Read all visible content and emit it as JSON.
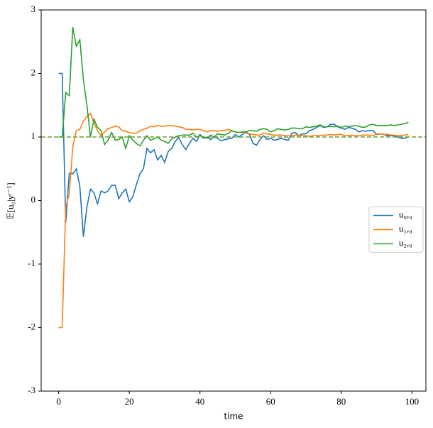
{
  "chart_data": {
    "type": "line",
    "xlabel": "time",
    "ylabel": "𝔼[u₀|yᵗ⁻¹]",
    "x": [
      0,
      1,
      2,
      3,
      4,
      5,
      6,
      7,
      8,
      9,
      10,
      11,
      12,
      13,
      14,
      15,
      16,
      17,
      18,
      19,
      20,
      21,
      22,
      23,
      24,
      25,
      26,
      27,
      28,
      29,
      30,
      31,
      32,
      33,
      34,
      35,
      36,
      37,
      38,
      39,
      40,
      41,
      42,
      43,
      44,
      45,
      46,
      47,
      48,
      49,
      50,
      51,
      52,
      53,
      54,
      55,
      56,
      57,
      58,
      59,
      60,
      61,
      62,
      63,
      64,
      65,
      66,
      67,
      68,
      69,
      70,
      71,
      72,
      73,
      74,
      75,
      76,
      77,
      78,
      79,
      80,
      81,
      82,
      83,
      84,
      85,
      86,
      87,
      88,
      89,
      90,
      91,
      92,
      93,
      94,
      95,
      96,
      97,
      98,
      99
    ],
    "series": [
      {
        "name": "u₀,₀",
        "color": "#1f77b4",
        "values": [
          2,
          2,
          -0.35,
          0.43,
          0.42,
          0.5,
          0.22,
          -0.57,
          -0.1,
          0.18,
          0.12,
          -0.05,
          0.15,
          0.12,
          0.15,
          0.24,
          0.24,
          0.03,
          0.12,
          0.18,
          -0.02,
          0.06,
          0.25,
          0.42,
          0.5,
          0.82,
          0.75,
          0.8,
          0.64,
          0.71,
          0.6,
          0.77,
          0.82,
          0.93,
          0.99,
          0.88,
          0.8,
          0.9,
          0.98,
          0.93,
          1.04,
          0.98,
          1.0,
          0.96,
          1.0,
          0.98,
          0.94,
          0.96,
          0.97,
          0.98,
          1.04,
          1.0,
          1.04,
          1.08,
          1.04,
          0.9,
          0.87,
          0.96,
          1.02,
          0.96,
          0.98,
          0.95,
          0.96,
          0.98,
          0.96,
          0.95,
          1.06,
          1.07,
          1.02,
          1.05,
          1.05,
          1.1,
          1.12,
          1.15,
          1.18,
          1.15,
          1.16,
          1.2,
          1.2,
          1.16,
          1.14,
          1.12,
          1.15,
          1.14,
          1.12,
          1.08,
          1.1,
          1.09,
          1.1,
          1.1,
          1.04,
          1.05,
          1.04,
          1.02,
          1.02,
          1.02,
          1.0,
          0.98,
          0.98,
          1.0
        ]
      },
      {
        "name": "u₁,₀",
        "color": "#ff7f0e",
        "values": [
          -2,
          -2,
          -0.1,
          0.1,
          0.85,
          1.1,
          1.12,
          1.25,
          1.32,
          1.37,
          1.22,
          1.1,
          1.02,
          1.08,
          1.13,
          1.15,
          1.17,
          1.16,
          1.1,
          1.09,
          1.07,
          1.06,
          1.06,
          1.1,
          1.12,
          1.14,
          1.17,
          1.16,
          1.18,
          1.17,
          1.17,
          1.18,
          1.18,
          1.17,
          1.16,
          1.15,
          1.12,
          1.12,
          1.11,
          1.12,
          1.12,
          1.1,
          1.08,
          1.1,
          1.1,
          1.09,
          1.1,
          1.1,
          1.12,
          1.1,
          1.08,
          1.07,
          1.08,
          1.06,
          1.05,
          1.04,
          1.03,
          1.03,
          1.06,
          1.05,
          1.04,
          1.03,
          1.03,
          1.03,
          1.02,
          1.02,
          1.02,
          1.03,
          1.02,
          1.02,
          1.02,
          1.01,
          1.02,
          1.02,
          1.02,
          1.03,
          1.03,
          1.04,
          1.03,
          1.04,
          1.04,
          1.02,
          1.02,
          1.03,
          1.02,
          1.02,
          1.03,
          1.03,
          1.03,
          1.02,
          1.05,
          1.05,
          1.04,
          1.04,
          1.03,
          1.03,
          1.02,
          1.02,
          1.03,
          1.04
        ]
      },
      {
        "name": "u₂,₀",
        "color": "#2ca02c",
        "values": [
          1,
          1,
          1.7,
          1.65,
          2.73,
          2.43,
          2.53,
          1.9,
          1.5,
          1.0,
          1.28,
          1.15,
          1.1,
          0.88,
          0.95,
          1.07,
          0.95,
          0.96,
          1.0,
          0.82,
          1.02,
          0.95,
          0.9,
          0.86,
          0.95,
          1.02,
          0.95,
          0.97,
          1.0,
          0.95,
          0.93,
          0.9,
          0.97,
          1.0,
          1.02,
          1.03,
          1.03,
          1.03,
          1.06,
          1.0,
          1.02,
          1.0,
          0.98,
          1.03,
          1.0,
          1.05,
          1.04,
          1.03,
          1.06,
          1.1,
          1.08,
          1.07,
          1.08,
          1.08,
          1.1,
          1.1,
          1.09,
          1.12,
          1.13,
          1.12,
          1.08,
          1.1,
          1.13,
          1.12,
          1.11,
          1.12,
          1.14,
          1.14,
          1.13,
          1.13,
          1.16,
          1.15,
          1.16,
          1.17,
          1.19,
          1.16,
          1.16,
          1.17,
          1.16,
          1.17,
          1.15,
          1.17,
          1.17,
          1.17,
          1.18,
          1.17,
          1.15,
          1.16,
          1.19,
          1.2,
          1.18,
          1.18,
          1.18,
          1.18,
          1.19,
          1.18,
          1.19,
          1.2,
          1.21,
          1.23
        ]
      }
    ],
    "reference_line": {
      "value": 1,
      "color": "#6a9f3a",
      "style": "dashed"
    },
    "xlim": [
      -4.95,
      103.95
    ],
    "xticks": [
      0,
      20,
      40,
      60,
      80,
      100
    ],
    "ylim": [
      -3,
      3
    ],
    "yticks": [
      -3,
      -2,
      -1,
      0,
      1,
      2,
      3
    ],
    "yticks_labels_note": null,
    "legend": "right"
  }
}
